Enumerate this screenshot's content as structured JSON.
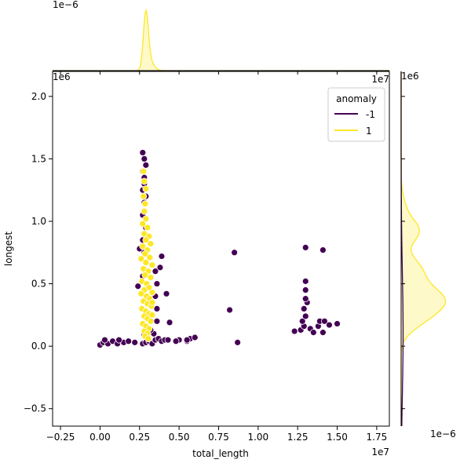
{
  "chart_data": {
    "type": "scatter",
    "title": "",
    "xlabel": "total_length",
    "ylabel": "longest",
    "x_offset_text": "1e7",
    "y_offset_text": "1e6",
    "xlim": [
      -0.3,
      1.83
    ],
    "ylim": [
      -0.64,
      2.2
    ],
    "xticks": [
      -0.25,
      0.0,
      0.25,
      0.5,
      0.75,
      1.0,
      1.25,
      1.5,
      1.75
    ],
    "xtick_labels": [
      "−0.25",
      "0.00",
      "0.25",
      "0.50",
      "0.75",
      "1.00",
      "1.25",
      "1.50",
      "1.75"
    ],
    "yticks": [
      -0.5,
      0.0,
      0.5,
      1.0,
      1.5,
      2.0
    ],
    "ytick_labels": [
      "−0.5",
      "0.0",
      "0.5",
      "1.0",
      "1.5",
      "2.0"
    ],
    "grid": false,
    "legend": {
      "title": "anomaly",
      "placement": "upper-right",
      "entries": [
        {
          "label": "-1",
          "color": "#440154"
        },
        {
          "label": "1",
          "color": "#fde725"
        }
      ]
    },
    "series": [
      {
        "name": "-1",
        "color": "#440154",
        "points": [
          [
            0.0,
            0.01
          ],
          [
            0.02,
            0.03
          ],
          [
            0.05,
            0.02
          ],
          [
            0.08,
            0.04
          ],
          [
            0.11,
            0.02
          ],
          [
            0.15,
            0.03
          ],
          [
            0.18,
            0.04
          ],
          [
            0.22,
            0.03
          ],
          [
            0.03,
            0.05
          ],
          [
            0.12,
            0.05
          ],
          [
            0.25,
            0.78
          ],
          [
            0.27,
            0.56
          ],
          [
            0.24,
            0.48
          ],
          [
            0.27,
            1.55
          ],
          [
            0.28,
            1.5
          ],
          [
            0.29,
            1.45
          ],
          [
            0.27,
            1.4
          ],
          [
            0.28,
            1.35
          ],
          [
            0.28,
            1.3
          ],
          [
            0.27,
            1.25
          ],
          [
            0.29,
            1.2
          ],
          [
            0.28,
            1.15
          ],
          [
            0.27,
            1.05
          ],
          [
            0.29,
            0.95
          ],
          [
            0.27,
            0.85
          ],
          [
            0.28,
            0.75
          ],
          [
            0.27,
            0.02
          ],
          [
            0.29,
            0.03
          ],
          [
            0.31,
            0.04
          ],
          [
            0.33,
            0.02
          ],
          [
            0.35,
            0.05
          ],
          [
            0.37,
            0.06
          ],
          [
            0.3,
            0.08
          ],
          [
            0.34,
            0.1
          ],
          [
            0.32,
            0.13
          ],
          [
            0.28,
            0.09
          ],
          [
            0.36,
            0.2
          ],
          [
            0.36,
            0.3
          ],
          [
            0.35,
            0.4
          ],
          [
            0.36,
            0.5
          ],
          [
            0.35,
            0.6
          ],
          [
            0.39,
            0.72
          ],
          [
            0.38,
            0.63
          ],
          [
            0.42,
            0.42
          ],
          [
            0.44,
            0.19
          ],
          [
            0.39,
            0.04
          ],
          [
            0.41,
            0.05
          ],
          [
            0.43,
            0.05
          ],
          [
            0.5,
            0.05
          ],
          [
            0.55,
            0.04
          ],
          [
            0.57,
            0.06
          ],
          [
            0.6,
            0.07
          ],
          [
            0.55,
            0.05
          ],
          [
            0.48,
            0.04
          ],
          [
            0.82,
            0.29
          ],
          [
            0.85,
            0.75
          ],
          [
            0.87,
            0.03
          ],
          [
            1.23,
            0.12
          ],
          [
            1.27,
            0.13
          ],
          [
            1.29,
            0.16
          ],
          [
            1.28,
            0.2
          ],
          [
            1.3,
            0.24
          ],
          [
            1.29,
            0.3
          ],
          [
            1.31,
            0.35
          ],
          [
            1.3,
            0.38
          ],
          [
            1.3,
            0.45
          ],
          [
            1.3,
            0.52
          ],
          [
            1.3,
            0.79
          ],
          [
            1.33,
            0.14
          ],
          [
            1.35,
            0.11
          ],
          [
            1.38,
            0.16
          ],
          [
            1.39,
            0.2
          ],
          [
            1.41,
            0.11
          ],
          [
            1.42,
            0.2
          ],
          [
            1.45,
            0.17
          ],
          [
            1.5,
            0.18
          ],
          [
            1.41,
            0.77
          ]
        ]
      },
      {
        "name": "1",
        "color": "#fde725",
        "points": [
          [
            0.275,
            1.4
          ],
          [
            0.28,
            1.32
          ],
          [
            0.29,
            1.26
          ],
          [
            0.275,
            1.2
          ],
          [
            0.285,
            1.14
          ],
          [
            0.28,
            1.08
          ],
          [
            0.29,
            1.02
          ],
          [
            0.27,
            0.98
          ],
          [
            0.3,
            0.95
          ],
          [
            0.28,
            0.9
          ],
          [
            0.31,
            0.88
          ],
          [
            0.29,
            0.85
          ],
          [
            0.32,
            0.82
          ],
          [
            0.27,
            0.8
          ],
          [
            0.3,
            0.77
          ],
          [
            0.285,
            0.74
          ],
          [
            0.315,
            0.71
          ],
          [
            0.26,
            0.7
          ],
          [
            0.29,
            0.67
          ],
          [
            0.33,
            0.65
          ],
          [
            0.275,
            0.62
          ],
          [
            0.305,
            0.6
          ],
          [
            0.285,
            0.57
          ],
          [
            0.32,
            0.55
          ],
          [
            0.265,
            0.52
          ],
          [
            0.295,
            0.5
          ],
          [
            0.31,
            0.47
          ],
          [
            0.28,
            0.45
          ],
          [
            0.33,
            0.43
          ],
          [
            0.26,
            0.42
          ],
          [
            0.295,
            0.4
          ],
          [
            0.315,
            0.38
          ],
          [
            0.275,
            0.36
          ],
          [
            0.3,
            0.34
          ],
          [
            0.325,
            0.32
          ],
          [
            0.265,
            0.3
          ],
          [
            0.29,
            0.28
          ],
          [
            0.31,
            0.26
          ],
          [
            0.28,
            0.24
          ],
          [
            0.3,
            0.22
          ],
          [
            0.32,
            0.2
          ],
          [
            0.27,
            0.18
          ],
          [
            0.29,
            0.16
          ],
          [
            0.31,
            0.14
          ],
          [
            0.28,
            0.12
          ],
          [
            0.3,
            0.1
          ],
          [
            0.285,
            0.08
          ],
          [
            0.305,
            0.06
          ],
          [
            0.33,
            0.35
          ],
          [
            0.33,
            0.25
          ]
        ]
      }
    ],
    "marginal_x": {
      "offset_text": "1e−6",
      "series_minus1_peak_x": 0.29,
      "series_1_peak_x": 0.29
    },
    "marginal_y": {
      "offset_text": "1e−6",
      "peak_y": 0.36
    }
  }
}
